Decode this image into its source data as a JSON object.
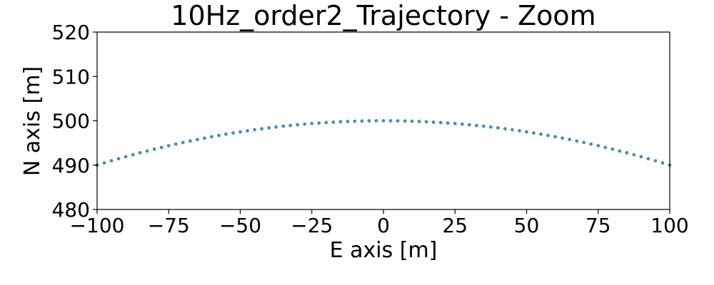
{
  "chart_data": {
    "type": "scatter",
    "title": "10Hz_order2_Trajectory - Zoom",
    "xlabel": "E axis [m]",
    "ylabel": "N axis [m]",
    "xlim": [
      -100,
      100
    ],
    "ylim": [
      480,
      520
    ],
    "xticks": [
      -100,
      -75,
      -50,
      -25,
      0,
      25,
      50,
      75,
      100
    ],
    "xtick_labels": [
      "−100",
      "−75",
      "−50",
      "−25",
      "0",
      "25",
      "50",
      "75",
      "100"
    ],
    "yticks": [
      480,
      490,
      500,
      510,
      520
    ],
    "ytick_labels": [
      "480",
      "490",
      "500",
      "510",
      "520"
    ],
    "grid": false,
    "series": [
      {
        "name": "trajectory",
        "color": "#4a8db5",
        "x": [
          -100,
          -97.5,
          -95,
          -92.5,
          -90,
          -87.5,
          -85,
          -82.5,
          -80,
          -77.5,
          -75,
          -72.5,
          -70,
          -67.5,
          -65,
          -62.5,
          -60,
          -57.5,
          -55,
          -52.5,
          -50,
          -47.5,
          -45,
          -42.5,
          -40,
          -37.5,
          -35,
          -32.5,
          -30,
          -27.5,
          -25,
          -22.5,
          -20,
          -17.5,
          -15,
          -12.5,
          -10,
          -7.5,
          -5,
          -2.5,
          0,
          2.5,
          5,
          7.5,
          10,
          12.5,
          15,
          17.5,
          20,
          22.5,
          25,
          27.5,
          30,
          32.5,
          35,
          37.5,
          40,
          42.5,
          45,
          47.5,
          50,
          52.5,
          55,
          57.5,
          60,
          62.5,
          65,
          67.5,
          70,
          72.5,
          75,
          77.5,
          80,
          82.5,
          85,
          87.5,
          90,
          92.5,
          95,
          97.5,
          100
        ],
        "y": [
          490.0,
          490.49,
          490.98,
          491.44,
          491.9,
          492.34,
          492.78,
          493.19,
          493.6,
          493.99,
          494.38,
          494.74,
          495.1,
          495.44,
          495.78,
          496.09,
          496.4,
          496.69,
          496.98,
          497.24,
          497.5,
          497.74,
          497.98,
          498.19,
          498.4,
          498.59,
          498.78,
          498.94,
          499.1,
          499.24,
          499.38,
          499.49,
          499.6,
          499.69,
          499.78,
          499.84,
          499.9,
          499.94,
          499.98,
          499.99,
          500.0,
          499.99,
          499.98,
          499.94,
          499.9,
          499.84,
          499.78,
          499.69,
          499.6,
          499.49,
          499.38,
          499.24,
          499.1,
          498.94,
          498.78,
          498.59,
          498.4,
          498.19,
          497.98,
          497.74,
          497.5,
          497.24,
          496.98,
          496.69,
          496.4,
          496.09,
          495.78,
          495.44,
          495.1,
          494.74,
          494.38,
          493.99,
          493.6,
          493.19,
          492.78,
          492.34,
          491.9,
          491.44,
          490.98,
          490.49,
          490.0
        ]
      }
    ]
  }
}
